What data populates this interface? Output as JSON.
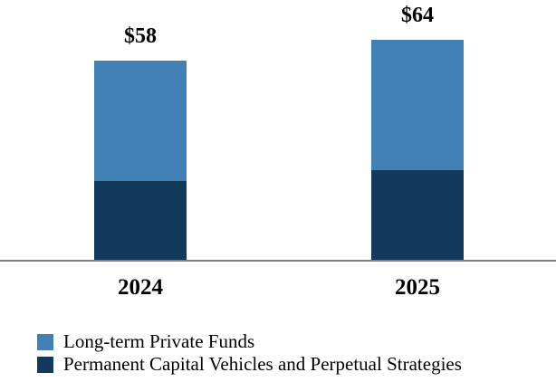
{
  "chart_data": {
    "type": "bar",
    "stacked": true,
    "categories": [
      "2024",
      "2025"
    ],
    "series": [
      {
        "name": "Long-term Private Funds",
        "color": "#4280B5",
        "values": [
          35,
          38
        ]
      },
      {
        "name": "Permanent Capital Vehicles and Perpetual Strategies",
        "color": "#123A5C",
        "values": [
          23,
          26
        ]
      }
    ],
    "totals": [
      "$58",
      "$64"
    ],
    "total_values": [
      58,
      64
    ],
    "title": "",
    "xlabel": "",
    "ylabel": "",
    "ylim": [
      0,
      70
    ],
    "grid": false,
    "legend_position": "bottom-left",
    "axis_line_color": "#808080",
    "background_color": "#FFFFFF",
    "label_color": "#000000"
  }
}
